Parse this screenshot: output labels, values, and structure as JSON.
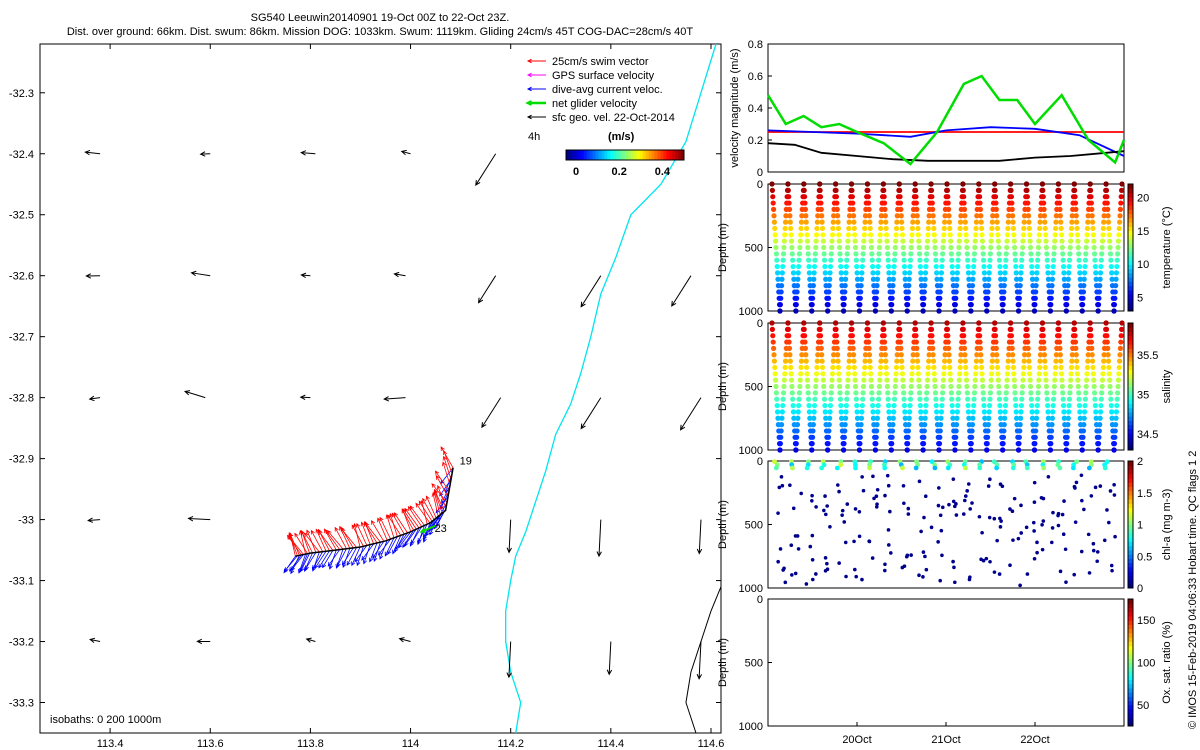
{
  "header": {
    "title": "SG540 Leeuwin20140901 19-Oct 00Z to 22-Oct 23Z.",
    "subtitle": "Dist. over ground: 66km. Dist. swum: 86km. Mission DOG: 1033km. Swum: 1119km. Gliding 24cm/s 45T COG-DAC=28cm/s 40T"
  },
  "credit": "© IMOS 15-Feb-2019 04:06:33 Hobart time. QC flags 1  2",
  "colors": {
    "swim": "#ff0000",
    "gps": "#ff00ff",
    "dac": "#0000ff",
    "net": "#00dd00",
    "sfc": "#000000",
    "coast": "#00e5ee",
    "isobath": "#000000"
  },
  "chart_data": [
    {
      "type": "scatter",
      "kind": "map",
      "xlim": [
        113.26,
        114.62
      ],
      "ylim": [
        -33.35,
        -32.22
      ],
      "xticks": [
        113.4,
        113.6,
        113.8,
        114,
        114.2,
        114.4,
        114.6
      ],
      "yticks": [
        -32.3,
        -32.4,
        -32.5,
        -32.6,
        -32.7,
        -32.8,
        -32.9,
        -33,
        -33.1,
        -33.2,
        -33.3
      ],
      "legend": {
        "position": "top-right",
        "entries": [
          "25cm/s swim vector",
          "GPS surface velocity",
          "dive-avg current veloc.",
          "net glider velocity",
          "sfc geo. vel. 22-Oct-2014"
        ]
      },
      "scale_label": "4h",
      "colorbar": {
        "label": "(m/s)",
        "ticks": [
          0,
          0.2,
          0.4
        ],
        "range": [
          0,
          0.5
        ]
      },
      "isobaths_label": "isobaths: 0   200  1000m",
      "annotations": [
        {
          "text": "19",
          "lon": 114.09,
          "lat": -32.91
        },
        {
          "text": "23",
          "lon": 114.04,
          "lat": -33.02
        }
      ],
      "track": {
        "lon": [
          114.085,
          114.07,
          114.04,
          114.0,
          113.95,
          113.9,
          113.85,
          113.8,
          113.77
        ],
        "lat": [
          -32.915,
          -32.985,
          -33.005,
          -33.02,
          -33.035,
          -33.045,
          -33.05,
          -33.055,
          -33.06
        ]
      },
      "surface_vectors": {
        "rows": [
          {
            "lat": -32.4,
            "lon": [
              113.38,
              113.6,
              113.81,
              114.0,
              114.17
            ]
          },
          {
            "lat": -32.6,
            "lon": [
              113.38,
              113.6,
              113.8,
              113.99,
              114.17,
              114.38,
              114.56
            ]
          },
          {
            "lat": -32.8,
            "lon": [
              113.38,
              113.59,
              113.8,
              113.99,
              114.18,
              114.38,
              114.58
            ]
          },
          {
            "lat": -33.0,
            "lon": [
              113.38,
              113.6,
              114.2,
              114.38,
              114.58
            ]
          },
          {
            "lat": -33.2,
            "lon": [
              113.38,
              113.6,
              113.81,
              114.0,
              114.2,
              114.4,
              114.58
            ]
          }
        ]
      }
    },
    {
      "type": "line",
      "ylabel": "velocity magnitude (m/s)",
      "ylim": [
        0,
        0.8
      ],
      "yticks": [
        0,
        0.2,
        0.4,
        0.6,
        0.8
      ],
      "xlim": [
        19.0,
        23.0
      ],
      "series": [
        {
          "color": "#ff0000",
          "x": [
            19.0,
            23.0
          ],
          "y": [
            0.25,
            0.25
          ]
        },
        {
          "color": "#0000ff",
          "x": [
            19.0,
            19.5,
            20.0,
            20.3,
            20.6,
            21.0,
            21.5,
            22.0,
            22.5,
            23.0
          ],
          "y": [
            0.26,
            0.25,
            0.24,
            0.23,
            0.22,
            0.26,
            0.28,
            0.27,
            0.23,
            0.1
          ]
        },
        {
          "color": "#000000",
          "x": [
            19.0,
            19.3,
            19.6,
            20.0,
            20.4,
            20.8,
            21.2,
            21.6,
            22.0,
            22.4,
            22.8,
            23.0
          ],
          "y": [
            0.18,
            0.17,
            0.12,
            0.1,
            0.08,
            0.07,
            0.07,
            0.07,
            0.09,
            0.1,
            0.12,
            0.13
          ]
        },
        {
          "color": "#00dd00",
          "x": [
            19.0,
            19.2,
            19.4,
            19.6,
            19.8,
            20.0,
            20.3,
            20.6,
            20.9,
            21.2,
            21.4,
            21.6,
            21.8,
            22.0,
            22.3,
            22.6,
            22.9,
            23.0
          ],
          "y": [
            0.48,
            0.3,
            0.35,
            0.28,
            0.3,
            0.25,
            0.18,
            0.05,
            0.25,
            0.55,
            0.6,
            0.45,
            0.45,
            0.3,
            0.48,
            0.2,
            0.06,
            0.2
          ]
        }
      ]
    },
    {
      "type": "scatter",
      "ylabel": "Depth (m)",
      "colorbar_label": "temperature (°C)",
      "ylim": [
        1000,
        0
      ],
      "yticks": [
        0,
        500,
        1000
      ],
      "cbar_ticks": [
        5,
        10,
        15,
        20
      ],
      "crange": [
        3,
        22
      ],
      "cycles": 22
    },
    {
      "type": "scatter",
      "ylabel": "Depth (m)",
      "colorbar_label": "salinity",
      "ylim": [
        1000,
        0
      ],
      "yticks": [
        0,
        500,
        1000
      ],
      "cbar_ticks": [
        34.5,
        35,
        35.5
      ],
      "crange": [
        34.3,
        35.9
      ],
      "cycles": 22
    },
    {
      "type": "scatter",
      "ylabel": "Depth (m)",
      "colorbar_label": "chl-a (mg m-3)",
      "ylim": [
        1000,
        0
      ],
      "yticks": [
        0,
        500,
        1000
      ],
      "cbar_ticks": [
        0,
        0.5,
        1,
        1.5,
        2
      ],
      "crange": [
        0,
        2
      ],
      "cycles": 22
    },
    {
      "type": "scatter",
      "ylabel": "Depth (m)",
      "colorbar_label": "Ox. sat. ratio (%)",
      "ylim": [
        1000,
        0
      ],
      "yticks": [
        0,
        500,
        1000
      ],
      "cbar_ticks": [
        50,
        100,
        150
      ],
      "crange": [
        25,
        175
      ],
      "xlim": [
        19.0,
        23.0
      ],
      "xticks": [
        20.0,
        21.0,
        22.0
      ],
      "xticklabels": [
        "20Oct",
        "21Oct",
        "22Oct"
      ]
    }
  ]
}
